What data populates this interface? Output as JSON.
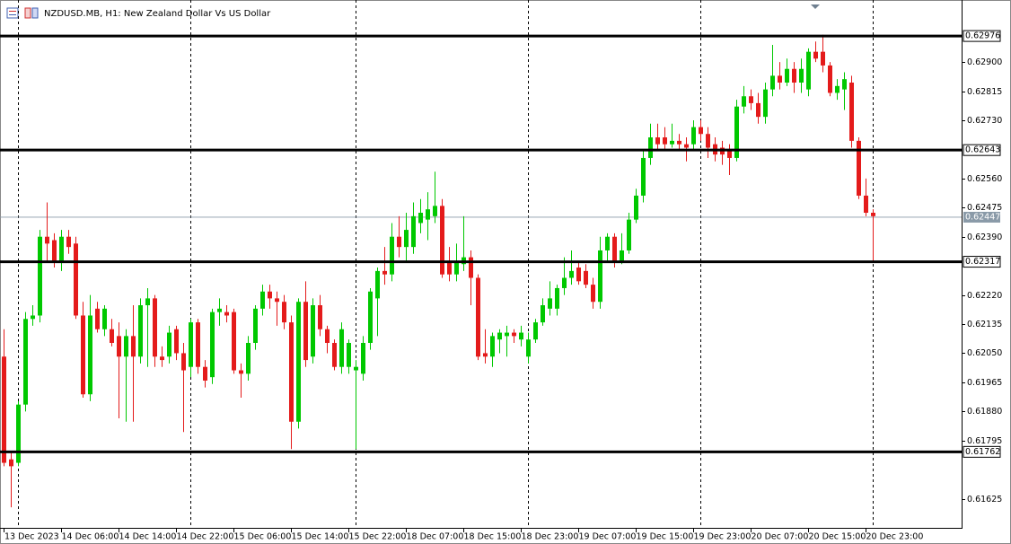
{
  "chart_data": {
    "type": "candlestick",
    "title": "NZDUSD.MB, H1:  New Zealand Dollar Vs US Dollar",
    "bull_color": "#00c800",
    "bear_color": "#e41b1b",
    "ylim": [
      0.61548,
      0.63068
    ],
    "yticks": [
      {
        "value": 0.629,
        "label": "0.62900"
      },
      {
        "value": 0.62815,
        "label": "0.62815"
      },
      {
        "value": 0.6273,
        "label": "0.62730"
      },
      {
        "value": 0.6256,
        "label": "0.62560"
      },
      {
        "value": 0.62475,
        "label": "0.62475"
      },
      {
        "value": 0.6239,
        "label": "0.62390"
      },
      {
        "value": 0.6222,
        "label": "0.62220"
      },
      {
        "value": 0.62135,
        "label": "0.62135"
      },
      {
        "value": 0.6205,
        "label": "0.62050"
      },
      {
        "value": 0.61965,
        "label": "0.61965"
      },
      {
        "value": 0.6188,
        "label": "0.61880"
      },
      {
        "value": 0.61795,
        "label": "0.61795"
      },
      {
        "value": 0.61625,
        "label": "0.61625"
      }
    ],
    "levels": [
      0.62976,
      0.62643,
      0.62317,
      0.61762
    ],
    "current_price": 0.62447,
    "categories": [
      "13 Dec 2023",
      null,
      null,
      null,
      null,
      null,
      null,
      null,
      "14 Dec 06:00",
      null,
      null,
      null,
      null,
      null,
      null,
      null,
      "14 Dec 14:00",
      null,
      null,
      null,
      null,
      null,
      null,
      null,
      "14 Dec 22:00",
      null,
      null,
      null,
      null,
      null,
      null,
      null,
      "15 Dec 06:00",
      null,
      null,
      null,
      null,
      null,
      null,
      null,
      "15 Dec 14:00",
      null,
      null,
      null,
      null,
      null,
      null,
      null,
      "15 Dec 22:00",
      null,
      null,
      null,
      null,
      null,
      null,
      null,
      "18 Dec 07:00",
      null,
      null,
      null,
      null,
      null,
      null,
      null,
      "18 Dec 15:00",
      null,
      null,
      null,
      null,
      null,
      null,
      null,
      "18 Dec 23:00",
      null,
      null,
      null,
      null,
      null,
      null,
      null,
      "19 Dec 07:00",
      null,
      null,
      null,
      null,
      null,
      null,
      null,
      "19 Dec 15:00",
      null,
      null,
      null,
      null,
      null,
      null,
      null,
      "19 Dec 23:00",
      null,
      null,
      null,
      null,
      null,
      null,
      null,
      "20 Dec 07:00",
      null,
      null,
      null,
      null,
      null,
      null,
      null,
      "20 Dec 15:00",
      null,
      null,
      null,
      null,
      null,
      null,
      null,
      "20 Dec 23:00",
      null
    ],
    "candles": [
      [
        0.6204,
        0.6212,
        0.6172,
        0.6173
      ],
      [
        0.6174,
        0.6176,
        0.616,
        0.6172
      ],
      [
        0.6173,
        0.6191,
        0.6172,
        0.619
      ],
      [
        0.619,
        0.6217,
        0.6188,
        0.6215
      ],
      [
        0.6215,
        0.6219,
        0.6213,
        0.6216
      ],
      [
        0.6216,
        0.6241,
        0.6214,
        0.6239
      ],
      [
        0.6239,
        0.6249,
        0.6232,
        0.6237
      ],
      [
        0.6238,
        0.624,
        0.623,
        0.6232
      ],
      [
        0.6232,
        0.6241,
        0.6229,
        0.6239
      ],
      [
        0.6239,
        0.6241,
        0.6234,
        0.6236
      ],
      [
        0.6237,
        0.6239,
        0.6215,
        0.6216
      ],
      [
        0.6216,
        0.622,
        0.6192,
        0.6193
      ],
      [
        0.6193,
        0.6222,
        0.6191,
        0.6216
      ],
      [
        0.6218,
        0.622,
        0.6211,
        0.6212
      ],
      [
        0.6212,
        0.6219,
        0.621,
        0.6218
      ],
      [
        0.6212,
        0.6215,
        0.6207,
        0.6208
      ],
      [
        0.621,
        0.6214,
        0.6186,
        0.6204
      ],
      [
        0.6204,
        0.6212,
        0.6185,
        0.621
      ],
      [
        0.621,
        0.6219,
        0.6185,
        0.6204
      ],
      [
        0.6204,
        0.6221,
        0.6202,
        0.6219
      ],
      [
        0.6219,
        0.6224,
        0.6201,
        0.6221
      ],
      [
        0.6221,
        0.6222,
        0.6201,
        0.6204
      ],
      [
        0.6204,
        0.6207,
        0.6201,
        0.6203
      ],
      [
        0.6204,
        0.6213,
        0.6202,
        0.6211
      ],
      [
        0.6212,
        0.6213,
        0.6203,
        0.6205
      ],
      [
        0.6205,
        0.6208,
        0.6182,
        0.62
      ],
      [
        0.6201,
        0.6215,
        0.6198,
        0.6214
      ],
      [
        0.6214,
        0.6215,
        0.6199,
        0.6201
      ],
      [
        0.6201,
        0.6203,
        0.6195,
        0.6197
      ],
      [
        0.6198,
        0.6218,
        0.6196,
        0.6217
      ],
      [
        0.6217,
        0.6221,
        0.6213,
        0.6218
      ],
      [
        0.6217,
        0.6219,
        0.6214,
        0.6216
      ],
      [
        0.6217,
        0.6218,
        0.6199,
        0.62
      ],
      [
        0.62,
        0.6202,
        0.6192,
        0.6199
      ],
      [
        0.6199,
        0.621,
        0.6197,
        0.6208
      ],
      [
        0.6208,
        0.6219,
        0.6206,
        0.6218
      ],
      [
        0.6218,
        0.6225,
        0.6216,
        0.6223
      ],
      [
        0.6223,
        0.6225,
        0.6218,
        0.6221
      ],
      [
        0.6221,
        0.6223,
        0.6213,
        0.622
      ],
      [
        0.622,
        0.6222,
        0.6212,
        0.6214
      ],
      [
        0.6214,
        0.6216,
        0.6177,
        0.6185
      ],
      [
        0.6185,
        0.6221,
        0.6183,
        0.622
      ],
      [
        0.622,
        0.6226,
        0.6201,
        0.6203
      ],
      [
        0.6204,
        0.6221,
        0.6202,
        0.6219
      ],
      [
        0.6219,
        0.6222,
        0.621,
        0.6212
      ],
      [
        0.6212,
        0.6213,
        0.6205,
        0.6208
      ],
      [
        0.6208,
        0.6209,
        0.62,
        0.6201
      ],
      [
        0.6201,
        0.6214,
        0.6199,
        0.6212
      ],
      [
        0.6201,
        0.6209,
        0.6199,
        0.6208
      ],
      [
        0.62,
        0.6203,
        0.6177,
        0.6201
      ],
      [
        0.6199,
        0.621,
        0.6197,
        0.6208
      ],
      [
        0.6208,
        0.6224,
        0.6206,
        0.6223
      ],
      [
        0.6221,
        0.623,
        0.621,
        0.6229
      ],
      [
        0.6229,
        0.6236,
        0.6225,
        0.6228
      ],
      [
        0.6228,
        0.6243,
        0.6226,
        0.6239
      ],
      [
        0.6239,
        0.6245,
        0.6233,
        0.6236
      ],
      [
        0.6236,
        0.6246,
        0.6232,
        0.6241
      ],
      [
        0.6236,
        0.6249,
        0.6234,
        0.6245
      ],
      [
        0.6243,
        0.625,
        0.624,
        0.6246
      ],
      [
        0.6244,
        0.6252,
        0.6238,
        0.6247
      ],
      [
        0.6245,
        0.6258,
        0.6243,
        0.6248
      ],
      [
        0.6248,
        0.625,
        0.6227,
        0.6228
      ],
      [
        0.6232,
        0.6236,
        0.6226,
        0.6228
      ],
      [
        0.6228,
        0.6237,
        0.6226,
        0.6232
      ],
      [
        0.6231,
        0.6245,
        0.6229,
        0.6233
      ],
      [
        0.6233,
        0.6235,
        0.6219,
        0.6227
      ],
      [
        0.6227,
        0.6228,
        0.6203,
        0.6204
      ],
      [
        0.6205,
        0.6212,
        0.6202,
        0.6204
      ],
      [
        0.6204,
        0.6211,
        0.6201,
        0.621
      ],
      [
        0.6209,
        0.6212,
        0.6205,
        0.6211
      ],
      [
        0.621,
        0.6213,
        0.6204,
        0.6211
      ],
      [
        0.6211,
        0.6212,
        0.6208,
        0.621
      ],
      [
        0.6209,
        0.6213,
        0.6207,
        0.6211
      ],
      [
        0.6204,
        0.6211,
        0.6202,
        0.6209
      ],
      [
        0.6209,
        0.6215,
        0.6208,
        0.6214
      ],
      [
        0.6214,
        0.6221,
        0.6213,
        0.6219
      ],
      [
        0.6218,
        0.6226,
        0.6216,
        0.6221
      ],
      [
        0.6218,
        0.6225,
        0.6216,
        0.6224
      ],
      [
        0.6224,
        0.6233,
        0.6222,
        0.6227
      ],
      [
        0.6227,
        0.6235,
        0.6225,
        0.6229
      ],
      [
        0.623,
        0.6232,
        0.6225,
        0.6226
      ],
      [
        0.6229,
        0.6231,
        0.6224,
        0.6225
      ],
      [
        0.6225,
        0.6227,
        0.6218,
        0.622
      ],
      [
        0.622,
        0.6239,
        0.6218,
        0.6235
      ],
      [
        0.6235,
        0.624,
        0.6232,
        0.6239
      ],
      [
        0.6239,
        0.624,
        0.623,
        0.6232
      ],
      [
        0.6232,
        0.624,
        0.6231,
        0.6235
      ],
      [
        0.6235,
        0.6246,
        0.6234,
        0.6244
      ],
      [
        0.6244,
        0.6253,
        0.6243,
        0.6251
      ],
      [
        0.6251,
        0.6264,
        0.6249,
        0.6262
      ],
      [
        0.6262,
        0.6272,
        0.626,
        0.6268
      ],
      [
        0.6268,
        0.6272,
        0.6264,
        0.6266
      ],
      [
        0.6268,
        0.6271,
        0.6264,
        0.6266
      ],
      [
        0.6266,
        0.6272,
        0.6265,
        0.6267
      ],
      [
        0.6267,
        0.6269,
        0.6264,
        0.6266
      ],
      [
        0.6266,
        0.6268,
        0.6261,
        0.6265
      ],
      [
        0.6266,
        0.6273,
        0.6264,
        0.6271
      ],
      [
        0.6271,
        0.6273,
        0.6267,
        0.6269
      ],
      [
        0.6269,
        0.6271,
        0.6262,
        0.6265
      ],
      [
        0.6266,
        0.6268,
        0.6261,
        0.6263
      ],
      [
        0.6265,
        0.6267,
        0.626,
        0.6263
      ],
      [
        0.6264,
        0.6266,
        0.6257,
        0.6262
      ],
      [
        0.6262,
        0.6279,
        0.6261,
        0.6277
      ],
      [
        0.6277,
        0.6283,
        0.6275,
        0.628
      ],
      [
        0.628,
        0.6282,
        0.6276,
        0.6278
      ],
      [
        0.6278,
        0.6281,
        0.6272,
        0.6274
      ],
      [
        0.6274,
        0.6284,
        0.6272,
        0.6282
      ],
      [
        0.6282,
        0.6295,
        0.628,
        0.6286
      ],
      [
        0.6286,
        0.629,
        0.6282,
        0.6284
      ],
      [
        0.6284,
        0.6291,
        0.6283,
        0.6288
      ],
      [
        0.6288,
        0.629,
        0.6281,
        0.6284
      ],
      [
        0.6284,
        0.6291,
        0.6281,
        0.6288
      ],
      [
        0.6282,
        0.6294,
        0.628,
        0.6293
      ],
      [
        0.6293,
        0.6296,
        0.629,
        0.6291
      ],
      [
        0.6293,
        0.6298,
        0.6287,
        0.6289
      ],
      [
        0.6289,
        0.629,
        0.628,
        0.6281
      ],
      [
        0.6281,
        0.6285,
        0.6279,
        0.6283
      ],
      [
        0.6282,
        0.6287,
        0.6276,
        0.6285
      ],
      [
        0.6284,
        0.6286,
        0.6265,
        0.6267
      ],
      [
        0.6267,
        0.6268,
        0.625,
        0.6251
      ],
      [
        0.6251,
        0.6256,
        0.6245,
        0.6246
      ],
      [
        0.6246,
        0.6247,
        0.6232,
        0.6245
      ]
    ]
  }
}
